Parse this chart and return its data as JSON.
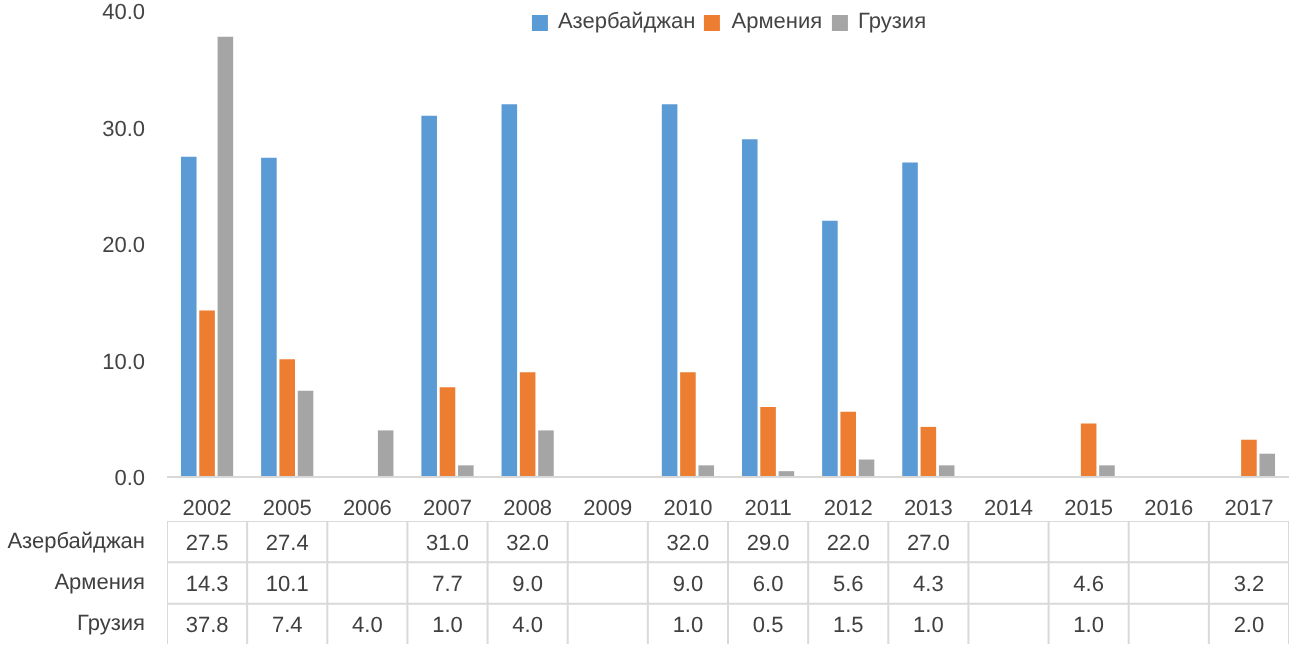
{
  "chart_data": {
    "type": "bar",
    "categories": [
      "2002",
      "2005",
      "2006",
      "2007",
      "2008",
      "2009",
      "2010",
      "2011",
      "2012",
      "2013",
      "2014",
      "2015",
      "2016",
      "2017"
    ],
    "ylim": [
      0,
      40
    ],
    "yticks": [
      {
        "value": 0,
        "label": "0.0"
      },
      {
        "value": 10,
        "label": "10.0"
      },
      {
        "value": 20,
        "label": "20.0"
      },
      {
        "value": 30,
        "label": "30.0"
      },
      {
        "value": 40,
        "label": "40.0"
      }
    ],
    "grid": false,
    "legend": "top",
    "series": [
      {
        "name": "Азербайджан",
        "color": "#5b9bd5",
        "values": [
          27.5,
          27.4,
          null,
          31.0,
          32.0,
          null,
          32.0,
          29.0,
          22.0,
          27.0,
          null,
          null,
          null,
          null
        ],
        "value_labels": [
          "27.5",
          "27.4",
          null,
          "31.0",
          "32.0",
          null,
          "32.0",
          "29.0",
          "22.0",
          "27.0",
          null,
          null,
          null,
          null
        ]
      },
      {
        "name": "Армения",
        "color": "#ed7d31",
        "values": [
          14.3,
          10.1,
          null,
          7.7,
          9.0,
          null,
          9.0,
          6.0,
          5.6,
          4.3,
          null,
          4.6,
          null,
          3.2
        ],
        "value_labels": [
          "14.3",
          "10.1",
          null,
          "7.7",
          "9.0",
          null,
          "9.0",
          "6.0",
          "5.6",
          "4.3",
          null,
          "4.6",
          null,
          "3.2"
        ]
      },
      {
        "name": "Грузия",
        "color": "#a5a5a5",
        "values": [
          37.8,
          7.4,
          4.0,
          1.0,
          4.0,
          null,
          1.0,
          0.5,
          1.5,
          1.0,
          null,
          1.0,
          null,
          2.0
        ],
        "value_labels": [
          "37.8",
          "7.4",
          "4.0",
          "1.0",
          "4.0",
          null,
          "1.0",
          "0.5",
          "1.5",
          "1.0",
          null,
          "1.0",
          null,
          "2.0"
        ]
      }
    ]
  }
}
